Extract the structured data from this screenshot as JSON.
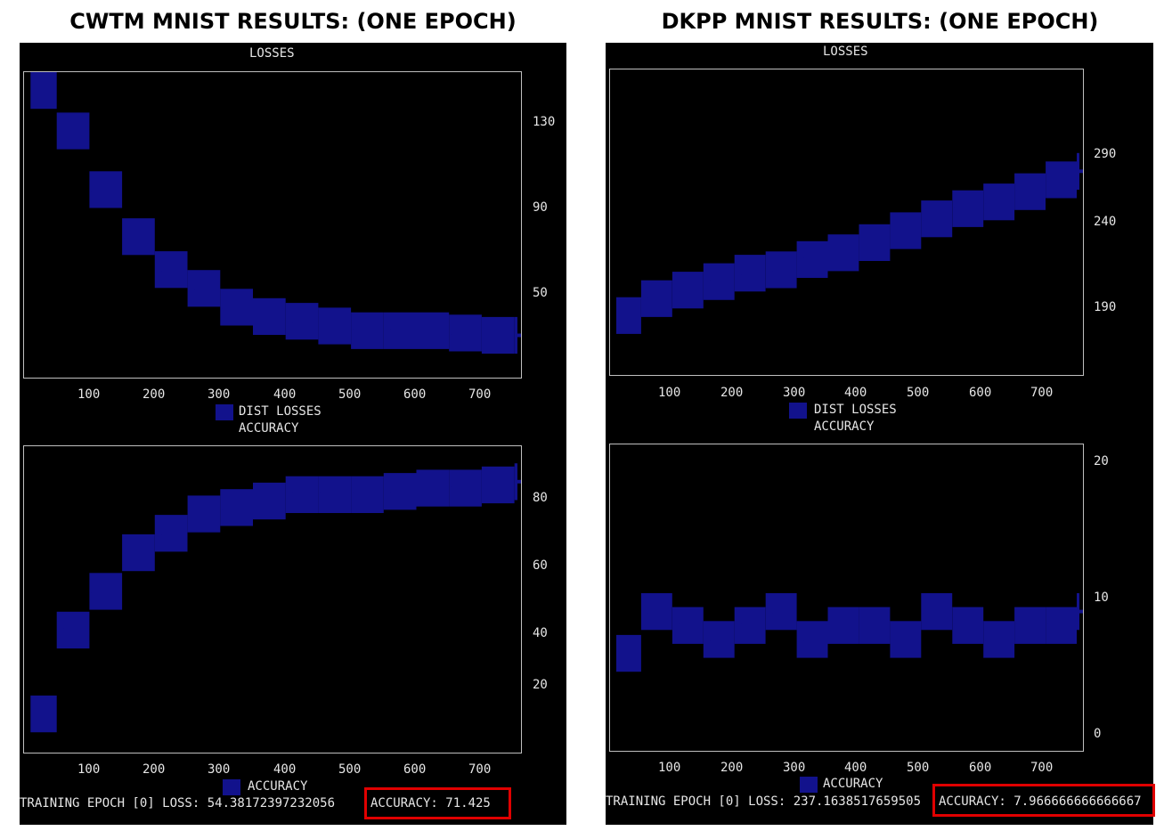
{
  "left": {
    "title": "CWTM MNIST RESULTS: (ONE EPOCH)",
    "losses_title": "LOSSES",
    "losses_yticks": [
      "130",
      "90",
      "50"
    ],
    "xticks": [
      "100",
      "200",
      "300",
      "400",
      "500",
      "600",
      "700"
    ],
    "legend_label": "DIST LOSSES",
    "accuracy_title": "ACCURACY",
    "accuracy_yticks": [
      "80",
      "60",
      "40",
      "20"
    ],
    "accuracy_legend": "ACCURACY",
    "status_prefix": "TRAINING EPOCH [0] LOSS: 54.38172397232056",
    "status_accuracy": "ACCURACY: 71.425"
  },
  "right": {
    "title": "DKPP MNIST RESULTS: (ONE EPOCH)",
    "losses_title": "LOSSES",
    "losses_yticks": [
      "290",
      "240",
      "190"
    ],
    "xticks": [
      "100",
      "200",
      "300",
      "400",
      "500",
      "600",
      "700"
    ],
    "legend_label": "DIST LOSSES",
    "accuracy_title": "ACCURACY",
    "accuracy_yticks": [
      "20",
      "10",
      "0"
    ],
    "accuracy_legend": "ACCURACY",
    "status_prefix": "TRAINING EPOCH [0] LOSS: 237.1638517659505",
    "status_accuracy": "ACCURACY: 7.966666666666667"
  },
  "colors": {
    "terminal_bg": "#000000",
    "bar_fill": "#12128c",
    "frame": "#bfbfbf",
    "highlight": "#e00000"
  },
  "chart_data": [
    {
      "type": "area",
      "title": "LOSSES",
      "legend": [
        "DIST LOSSES"
      ],
      "x": [
        10,
        50,
        100,
        150,
        200,
        250,
        300,
        350,
        400,
        450,
        500,
        550,
        600,
        650,
        700,
        750
      ],
      "series": [
        {
          "name": "DIST LOSSES",
          "values": [
            148,
            125,
            100,
            80,
            66,
            58,
            50,
            46,
            44,
            42,
            40,
            40,
            40,
            39,
            38,
            38
          ]
        }
      ],
      "xlim": [
        0,
        760
      ],
      "ylim": [
        20,
        150
      ]
    },
    {
      "type": "area",
      "title": "ACCURACY",
      "legend": [
        "ACCURACY"
      ],
      "x": [
        10,
        50,
        100,
        150,
        200,
        250,
        300,
        350,
        400,
        450,
        500,
        550,
        600,
        650,
        700,
        750
      ],
      "series": [
        {
          "name": "ACCURACY",
          "values": [
            12,
            38,
            50,
            62,
            68,
            74,
            76,
            78,
            80,
            80,
            80,
            81,
            82,
            82,
            83,
            84
          ]
        }
      ],
      "xlim": [
        0,
        760
      ],
      "ylim": [
        0,
        95
      ]
    },
    {
      "type": "area",
      "title": "LOSSES",
      "legend": [
        "DIST LOSSES"
      ],
      "x": [
        10,
        50,
        100,
        150,
        200,
        250,
        300,
        350,
        400,
        450,
        500,
        550,
        600,
        650,
        700,
        750
      ],
      "series": [
        {
          "name": "DIST LOSSES",
          "values": [
            195,
            205,
            210,
            215,
            220,
            222,
            228,
            232,
            238,
            245,
            252,
            258,
            262,
            268,
            275,
            280
          ]
        }
      ],
      "xlim": [
        0,
        760
      ],
      "ylim": [
        160,
        340
      ]
    },
    {
      "type": "area",
      "title": "ACCURACY",
      "legend": [
        "ACCURACY"
      ],
      "x": [
        10,
        50,
        100,
        150,
        200,
        250,
        300,
        350,
        400,
        450,
        500,
        550,
        600,
        650,
        700,
        750
      ],
      "series": [
        {
          "name": "ACCURACY",
          "values": [
            6,
            9,
            8,
            7,
            8,
            9,
            7,
            8,
            8,
            7,
            9,
            8,
            7,
            8,
            8,
            9
          ]
        }
      ],
      "xlim": [
        0,
        760
      ],
      "ylim": [
        -1,
        21
      ]
    }
  ]
}
